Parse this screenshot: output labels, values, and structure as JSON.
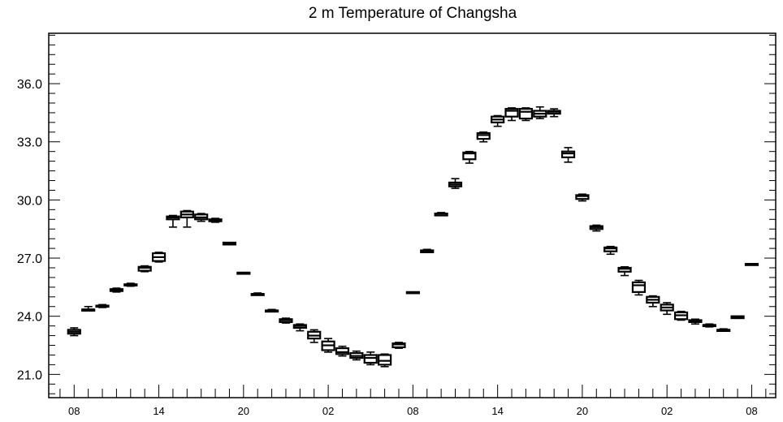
{
  "chart_data": {
    "type": "box",
    "title": "2 m Temperature of Changsha",
    "xlabel": "",
    "ylabel": "",
    "ylim": [
      19.8,
      38.6
    ],
    "yticks": [
      21.0,
      24.0,
      27.0,
      30.0,
      33.0,
      36.0
    ],
    "ytick_labels": [
      "21.0",
      "24.0",
      "27.0",
      "30.0",
      "33.0",
      "36.0"
    ],
    "x_hours": [
      8,
      14,
      20,
      26,
      32,
      38,
      44,
      50,
      56
    ],
    "x_tick_labels": [
      "08",
      "14",
      "20",
      "02",
      "08",
      "14",
      "20",
      "02",
      "08"
    ],
    "grid": false,
    "boxes": [
      {
        "h": 8,
        "min": 23.0,
        "q1": 23.1,
        "med": 23.2,
        "q3": 23.3,
        "max": 23.4
      },
      {
        "h": 9,
        "min": 24.35,
        "q1": 24.35,
        "med": 24.35,
        "q3": 24.35,
        "max": 24.5
      },
      {
        "h": 10,
        "min": 24.45,
        "q1": 24.5,
        "med": 24.5,
        "q3": 24.55,
        "max": 24.6
      },
      {
        "h": 11,
        "min": 25.25,
        "q1": 25.3,
        "med": 25.35,
        "q3": 25.4,
        "max": 25.45
      },
      {
        "h": 12,
        "min": 25.55,
        "q1": 25.6,
        "med": 25.6,
        "q3": 25.65,
        "max": 25.7
      },
      {
        "h": 13,
        "min": 26.3,
        "q1": 26.35,
        "med": 26.5,
        "q3": 26.55,
        "max": 26.6
      },
      {
        "h": 14,
        "min": 26.8,
        "q1": 26.85,
        "med": 27.05,
        "q3": 27.25,
        "max": 27.3
      },
      {
        "h": 15,
        "min": 28.6,
        "q1": 29.0,
        "med": 29.1,
        "q3": 29.15,
        "max": 29.2
      },
      {
        "h": 16,
        "min": 28.6,
        "q1": 29.1,
        "med": 29.25,
        "q3": 29.4,
        "max": 29.45
      },
      {
        "h": 17,
        "min": 28.9,
        "q1": 29.0,
        "med": 29.1,
        "q3": 29.25,
        "max": 29.3
      },
      {
        "h": 18,
        "min": 28.85,
        "q1": 28.9,
        "med": 28.95,
        "q3": 29.0,
        "max": 29.05
      },
      {
        "h": 19,
        "min": 27.7,
        "q1": 27.7,
        "med": 27.75,
        "q3": 27.8,
        "max": 27.8
      },
      {
        "h": 20,
        "min": 26.25,
        "q1": 26.25,
        "med": 26.25,
        "q3": 26.25,
        "max": 26.25
      },
      {
        "h": 21,
        "min": 25.1,
        "q1": 25.1,
        "med": 25.15,
        "q3": 25.15,
        "max": 25.2
      },
      {
        "h": 22,
        "min": 24.3,
        "q1": 24.3,
        "med": 24.3,
        "q3": 24.3,
        "max": 24.35
      },
      {
        "h": 23,
        "min": 23.65,
        "q1": 23.7,
        "med": 23.8,
        "q3": 23.85,
        "max": 23.9
      },
      {
        "h": 24,
        "min": 23.25,
        "q1": 23.4,
        "med": 23.5,
        "q3": 23.55,
        "max": 23.6
      },
      {
        "h": 25,
        "min": 22.65,
        "q1": 22.85,
        "med": 23.0,
        "q3": 23.2,
        "max": 23.3
      },
      {
        "h": 26,
        "min": 22.15,
        "q1": 22.25,
        "med": 22.5,
        "q3": 22.7,
        "max": 22.85
      },
      {
        "h": 27,
        "min": 21.95,
        "q1": 22.05,
        "med": 22.15,
        "q3": 22.35,
        "max": 22.45
      },
      {
        "h": 28,
        "min": 21.75,
        "q1": 21.85,
        "med": 21.95,
        "q3": 22.1,
        "max": 22.2
      },
      {
        "h": 29,
        "min": 21.5,
        "q1": 21.6,
        "med": 21.85,
        "q3": 22.0,
        "max": 22.15
      },
      {
        "h": 30,
        "min": 21.4,
        "q1": 21.5,
        "med": 21.7,
        "q3": 22.0,
        "max": 22.05
      },
      {
        "h": 31,
        "min": 22.35,
        "q1": 22.4,
        "med": 22.55,
        "q3": 22.6,
        "max": 22.65
      },
      {
        "h": 32,
        "min": 25.2,
        "q1": 25.2,
        "med": 25.2,
        "q3": 25.25,
        "max": 25.25
      },
      {
        "h": 33,
        "min": 27.3,
        "q1": 27.3,
        "med": 27.35,
        "q3": 27.4,
        "max": 27.45
      },
      {
        "h": 34,
        "min": 29.2,
        "q1": 29.2,
        "med": 29.3,
        "q3": 29.3,
        "max": 29.35
      },
      {
        "h": 35,
        "min": 30.6,
        "q1": 30.7,
        "med": 30.8,
        "q3": 30.9,
        "max": 31.1
      },
      {
        "h": 36,
        "min": 31.9,
        "q1": 32.1,
        "med": 32.4,
        "q3": 32.45,
        "max": 32.5
      },
      {
        "h": 37,
        "min": 33.0,
        "q1": 33.15,
        "med": 33.35,
        "q3": 33.45,
        "max": 33.5
      },
      {
        "h": 38,
        "min": 33.8,
        "q1": 34.0,
        "med": 34.15,
        "q3": 34.3,
        "max": 34.35
      },
      {
        "h": 39,
        "min": 34.1,
        "q1": 34.3,
        "med": 34.6,
        "q3": 34.7,
        "max": 34.75
      },
      {
        "h": 40,
        "min": 34.1,
        "q1": 34.2,
        "med": 34.55,
        "q3": 34.7,
        "max": 34.75
      },
      {
        "h": 41,
        "min": 34.2,
        "q1": 34.3,
        "med": 34.45,
        "q3": 34.6,
        "max": 34.8
      },
      {
        "h": 42,
        "min": 34.3,
        "q1": 34.45,
        "med": 34.55,
        "q3": 34.6,
        "max": 34.7
      },
      {
        "h": 43,
        "min": 31.95,
        "q1": 32.2,
        "med": 32.4,
        "q3": 32.5,
        "max": 32.7
      },
      {
        "h": 44,
        "min": 29.95,
        "q1": 30.05,
        "med": 30.2,
        "q3": 30.25,
        "max": 30.3
      },
      {
        "h": 45,
        "min": 28.4,
        "q1": 28.5,
        "med": 28.6,
        "q3": 28.65,
        "max": 28.7
      },
      {
        "h": 46,
        "min": 27.2,
        "q1": 27.35,
        "med": 27.5,
        "q3": 27.55,
        "max": 27.6
      },
      {
        "h": 47,
        "min": 26.1,
        "q1": 26.3,
        "med": 26.45,
        "q3": 26.5,
        "max": 26.55
      },
      {
        "h": 48,
        "min": 25.1,
        "q1": 25.25,
        "med": 25.6,
        "q3": 25.75,
        "max": 25.85
      },
      {
        "h": 49,
        "min": 24.5,
        "q1": 24.7,
        "med": 24.85,
        "q3": 25.0,
        "max": 25.05
      },
      {
        "h": 50,
        "min": 24.1,
        "q1": 24.3,
        "med": 24.45,
        "q3": 24.6,
        "max": 24.7
      },
      {
        "h": 51,
        "min": 23.8,
        "q1": 23.85,
        "med": 24.05,
        "q3": 24.2,
        "max": 24.25
      },
      {
        "h": 52,
        "min": 23.6,
        "q1": 23.7,
        "med": 23.75,
        "q3": 23.8,
        "max": 23.85
      },
      {
        "h": 53,
        "min": 23.45,
        "q1": 23.5,
        "med": 23.55,
        "q3": 23.55,
        "max": 23.6
      },
      {
        "h": 54,
        "min": 23.25,
        "q1": 23.25,
        "med": 23.3,
        "q3": 23.3,
        "max": 23.35
      },
      {
        "h": 55,
        "min": 23.9,
        "q1": 23.9,
        "med": 23.95,
        "q3": 24.0,
        "max": 24.0
      },
      {
        "h": 56,
        "min": 26.65,
        "q1": 26.65,
        "med": 26.7,
        "q3": 26.7,
        "max": 26.7
      }
    ]
  }
}
